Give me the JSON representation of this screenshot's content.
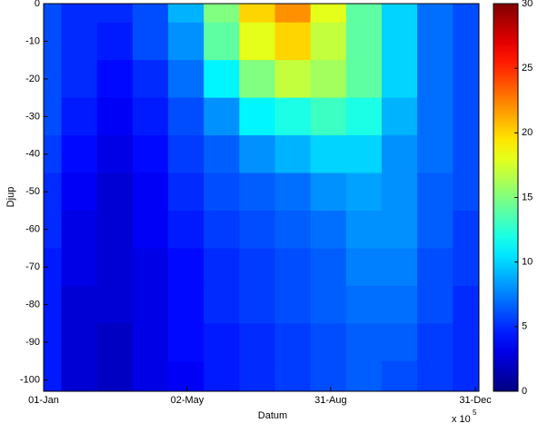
{
  "chart_data": {
    "type": "heatmap",
    "colormap": "jet",
    "x_label": "Datum",
    "y_label": "Djup",
    "x_exponent_base": "x 10",
    "x_exponent": "5",
    "x": [
      1,
      31,
      61,
      91,
      121,
      151,
      181,
      211,
      241,
      271,
      301,
      331,
      361
    ],
    "y": [
      0,
      -10,
      -20,
      -30,
      -40,
      -50,
      -60,
      -70,
      -80,
      -90,
      -100
    ],
    "z": [
      [
        6,
        5,
        5,
        6,
        9,
        15,
        20,
        22,
        18,
        14,
        10,
        7,
        6
      ],
      [
        6,
        5,
        4.5,
        6,
        8,
        14,
        18,
        20,
        17,
        14,
        10,
        7,
        6
      ],
      [
        6,
        5,
        4,
        5,
        7,
        11,
        15,
        17,
        16,
        14,
        10,
        7,
        6
      ],
      [
        6,
        4.5,
        3.5,
        4.5,
        6,
        8,
        11,
        12,
        13,
        12,
        9,
        7,
        6
      ],
      [
        5.5,
        4,
        3,
        4,
        5.5,
        6.5,
        8,
        9,
        10,
        10,
        8,
        7,
        6
      ],
      [
        5,
        3.5,
        2.5,
        3.5,
        5,
        6,
        6.5,
        7,
        8,
        8.5,
        8,
        6.5,
        6
      ],
      [
        5,
        3,
        2.5,
        3.5,
        4.5,
        5.5,
        6,
        6.5,
        7,
        8,
        8,
        6.5,
        5.5
      ],
      [
        4.5,
        3,
        2.5,
        3,
        4,
        5,
        5.5,
        6,
        6.5,
        7.5,
        7.5,
        6,
        5.5
      ],
      [
        4.5,
        2.5,
        2.5,
        3,
        4,
        5,
        5.5,
        6,
        6.5,
        7,
        7,
        6,
        5
      ],
      [
        4.5,
        2.5,
        2,
        3,
        4,
        4.5,
        5,
        5.5,
        6,
        6.5,
        6.5,
        5.5,
        5
      ],
      [
        4.5,
        2.5,
        2,
        3,
        3.5,
        4.5,
        5,
        5.5,
        6,
        6.5,
        6,
        5.5,
        5
      ]
    ],
    "xlim": [
      1,
      368
    ],
    "ylim": [
      -103,
      0
    ],
    "xticks": [
      {
        "value": 1,
        "label": "01-Jan"
      },
      {
        "value": 122,
        "label": "02-May"
      },
      {
        "value": 243,
        "label": "31-Aug"
      },
      {
        "value": 365,
        "label": "31-Dec"
      }
    ],
    "yticks": [
      0,
      -10,
      -20,
      -30,
      -40,
      -50,
      -60,
      -70,
      -80,
      -90,
      -100
    ],
    "colorbar": {
      "clim": [
        0,
        30
      ],
      "ticks": [
        0,
        5,
        10,
        15,
        20,
        25,
        30
      ]
    }
  }
}
